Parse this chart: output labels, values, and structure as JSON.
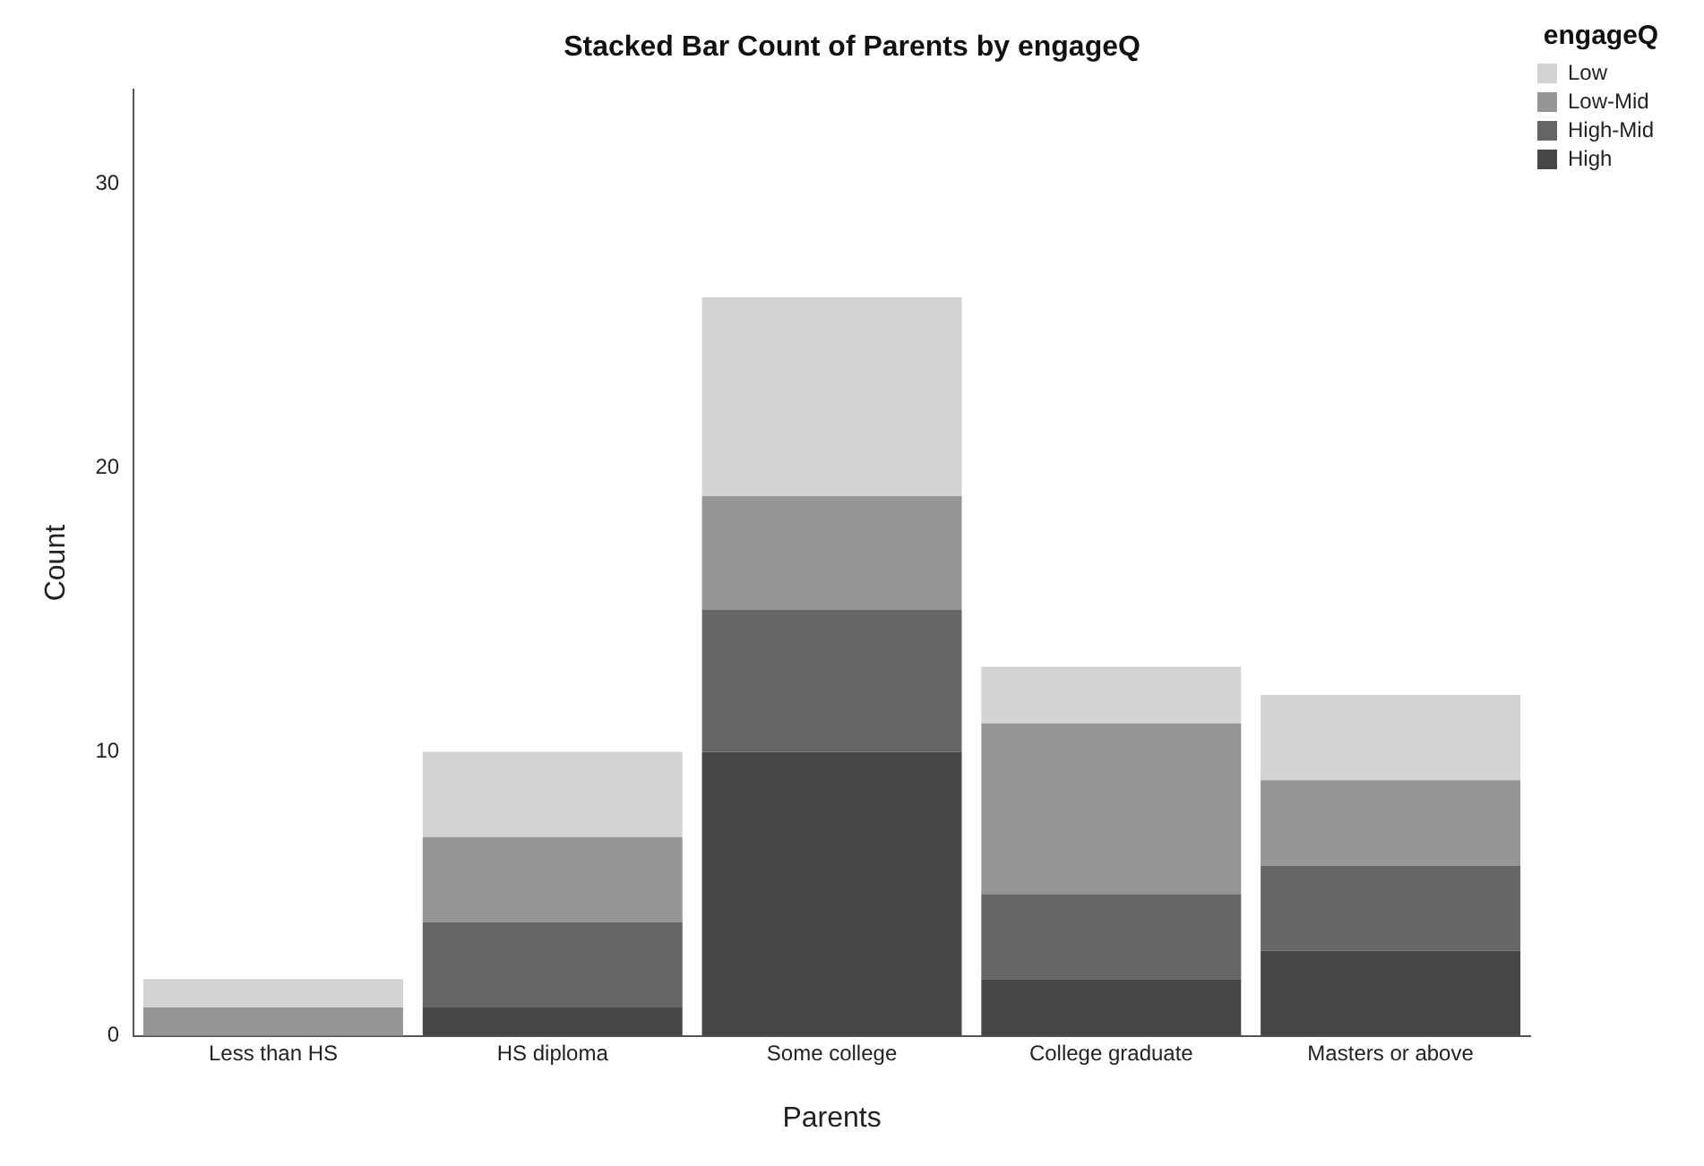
{
  "chart_data": {
    "type": "bar",
    "title": "Stacked Bar Count of Parents by engageQ",
    "xlabel": "Parents",
    "ylabel": "Count",
    "legend_title": "engageQ",
    "categories": [
      "Less than HS",
      "HS diploma",
      "Some college",
      "College graduate",
      "Masters or above"
    ],
    "series": [
      {
        "name": "High",
        "color": "#474747",
        "values": [
          0,
          1,
          10,
          2,
          3
        ]
      },
      {
        "name": "High-Mid",
        "color": "#666666",
        "values": [
          0,
          3,
          5,
          3,
          3
        ]
      },
      {
        "name": "Low-Mid",
        "color": "#989695",
        "values": [
          1,
          3,
          4,
          6,
          3
        ]
      },
      {
        "name": "Low",
        "color": "#d3d3d3",
        "values": [
          1,
          3,
          7,
          2,
          3
        ]
      }
    ],
    "stacked": true,
    "ylim": [
      0,
      33.3
    ],
    "yticks": [
      0,
      10,
      20,
      30
    ],
    "grid": false,
    "legend": "top right"
  }
}
